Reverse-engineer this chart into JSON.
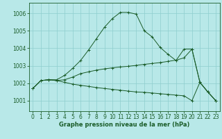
{
  "xlabel": "Graphe pression niveau de la mer (hPa)",
  "background_color": "#b8e8e8",
  "grid_color": "#8ecece",
  "line_color": "#1a5c28",
  "xlim": [
    -0.5,
    23.5
  ],
  "ylim": [
    1000.4,
    1006.6
  ],
  "yticks": [
    1001,
    1002,
    1003,
    1004,
    1005,
    1006
  ],
  "xticks": [
    0,
    1,
    2,
    3,
    4,
    5,
    6,
    7,
    8,
    9,
    10,
    11,
    12,
    13,
    14,
    15,
    16,
    17,
    18,
    19,
    20,
    21,
    22,
    23
  ],
  "lines": [
    [
      1001.7,
      1002.15,
      1002.2,
      1002.2,
      1002.45,
      1002.85,
      1003.3,
      1003.9,
      1004.55,
      1005.2,
      1005.7,
      1006.05,
      1006.05,
      1005.95,
      1005.0,
      1004.65,
      1004.05,
      1003.65,
      1003.3,
      1003.95,
      1003.95,
      1002.05,
      1001.5,
      1001.0
    ],
    [
      1001.7,
      1002.15,
      1002.2,
      1002.15,
      1002.2,
      1002.35,
      1002.55,
      1002.65,
      1002.75,
      1002.82,
      1002.88,
      1002.93,
      1002.97,
      1003.02,
      1003.08,
      1003.13,
      1003.18,
      1003.25,
      1003.32,
      1003.45,
      1003.95,
      1002.05,
      1001.5,
      1001.0
    ],
    [
      1001.7,
      1002.15,
      1002.2,
      1002.15,
      1002.05,
      1001.95,
      1001.88,
      1001.82,
      1001.75,
      1001.7,
      1001.65,
      1001.6,
      1001.55,
      1001.5,
      1001.48,
      1001.44,
      1001.4,
      1001.36,
      1001.32,
      1001.28,
      1001.0,
      1002.05,
      1001.5,
      1001.0
    ]
  ],
  "tick_fontsize": 5.5,
  "xlabel_fontsize": 6.0
}
